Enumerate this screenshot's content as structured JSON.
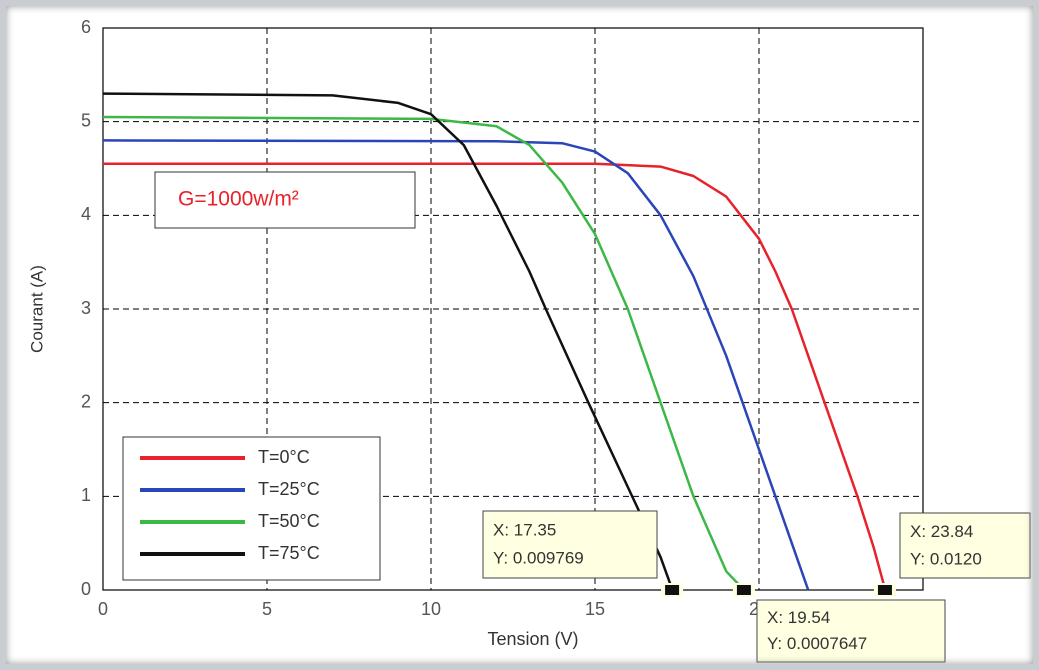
{
  "chart_data": {
    "type": "line",
    "xlabel": "Tension (V)",
    "ylabel": "Courant (A)",
    "xlim": [
      0,
      25
    ],
    "ylim": [
      0,
      6
    ],
    "xticks": [
      0,
      5,
      10,
      15,
      20
    ],
    "yticks": [
      0,
      1,
      2,
      3,
      4,
      5,
      6
    ],
    "grid": true,
    "legend": "lower left",
    "annotation": "G=1000w/m²",
    "series": [
      {
        "name": "T=0°C",
        "color": "#e8222a",
        "x": [
          0,
          15,
          17,
          18,
          19,
          20,
          20.5,
          21,
          21.5,
          22,
          22.5,
          23,
          23.5,
          23.84
        ],
        "values": [
          4.55,
          4.55,
          4.52,
          4.42,
          4.2,
          3.75,
          3.4,
          3.0,
          2.5,
          2.0,
          1.5,
          1.0,
          0.45,
          0.012
        ]
      },
      {
        "name": "T=25°C",
        "color": "#2a45b8",
        "x": [
          0,
          12,
          14,
          15,
          16,
          17,
          18,
          19,
          20,
          21,
          21.5
        ],
        "values": [
          4.8,
          4.79,
          4.77,
          4.68,
          4.45,
          4.0,
          3.35,
          2.5,
          1.5,
          0.5,
          0
        ]
      },
      {
        "name": "T=50°C",
        "color": "#3cb846",
        "x": [
          0,
          10,
          12,
          13,
          14,
          15,
          16,
          17,
          18,
          19,
          19.54
        ],
        "values": [
          5.05,
          5.03,
          4.95,
          4.75,
          4.35,
          3.8,
          3.0,
          2.0,
          1.0,
          0.2,
          0.0007647
        ]
      },
      {
        "name": "T=75°C",
        "color": "#111111",
        "x": [
          0,
          7,
          9,
          10,
          11,
          12,
          13,
          13.5,
          14.8,
          16,
          17,
          17.35
        ],
        "values": [
          5.3,
          5.28,
          5.2,
          5.08,
          4.75,
          4.1,
          3.4,
          3.0,
          2.0,
          1.1,
          0.35,
          0.009769
        ]
      }
    ],
    "datatips": [
      {
        "x": 17.35,
        "y": 0,
        "line1": "X: 17.35",
        "line2": "Y: 0.009769"
      },
      {
        "x": 19.54,
        "y": 0,
        "line1": "X: 19.54",
        "line2": "Y: 0.0007647"
      },
      {
        "x": 23.84,
        "y": 0,
        "line1": "X: 23.84",
        "line2": "Y: 0.0120"
      }
    ]
  }
}
